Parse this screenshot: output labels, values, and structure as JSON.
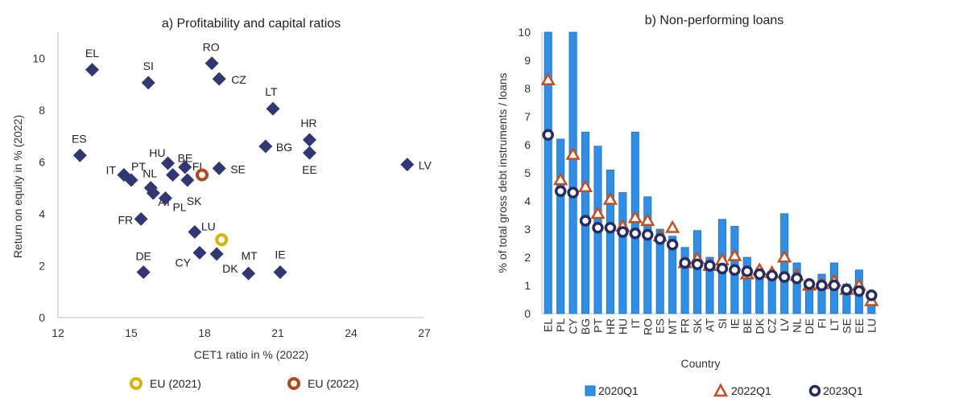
{
  "colors": {
    "diamond": "#303772",
    "eu2021": "#d9b200",
    "eu2022": "#b5461c",
    "bar": "#2e8fe8",
    "bar_edge": "#1c6fc4",
    "triangle": "#c2501f",
    "circle": "#262c5e"
  },
  "chart_data": [
    {
      "type": "scatter",
      "title": "a) Profitability and capital ratios",
      "xlabel": "CET1 ratio in % (2022)",
      "ylabel": "Return on equity in % (2022)",
      "xlim": [
        12,
        27
      ],
      "ylim": [
        0,
        11
      ],
      "xticks": [
        12,
        15,
        18,
        21,
        24,
        27
      ],
      "yticks": [
        0,
        2,
        4,
        6,
        8,
        10
      ],
      "grid": false,
      "legend_position": "bottom",
      "points": [
        {
          "label": "EL",
          "x": 13.4,
          "y": 9.55
        },
        {
          "label": "SI",
          "x": 15.7,
          "y": 9.05
        },
        {
          "label": "RO",
          "x": 18.3,
          "y": 9.8
        },
        {
          "label": "CZ",
          "x": 18.6,
          "y": 9.2
        },
        {
          "label": "LT",
          "x": 20.8,
          "y": 8.05
        },
        {
          "label": "ES",
          "x": 12.9,
          "y": 6.25
        },
        {
          "label": "BG",
          "x": 20.5,
          "y": 6.6
        },
        {
          "label": "HR",
          "x": 22.3,
          "y": 6.85
        },
        {
          "label": "EE",
          "x": 22.3,
          "y": 6.35
        },
        {
          "label": "LV",
          "x": 26.3,
          "y": 5.9
        },
        {
          "label": "IT",
          "x": 14.7,
          "y": 5.5
        },
        {
          "label": "PT",
          "x": 15.0,
          "y": 5.3
        },
        {
          "label": "HU",
          "x": 16.5,
          "y": 5.95
        },
        {
          "label": "BE",
          "x": 16.7,
          "y": 5.5
        },
        {
          "label": "FI",
          "x": 17.2,
          "y": 5.8
        },
        {
          "label": "SK",
          "x": 17.3,
          "y": 5.3
        },
        {
          "label": "SE",
          "x": 18.6,
          "y": 5.75
        },
        {
          "label": "NL",
          "x": 15.8,
          "y": 5.0
        },
        {
          "label": "AT",
          "x": 15.9,
          "y": 4.8
        },
        {
          "label": "PL",
          "x": 16.4,
          "y": 4.6
        },
        {
          "label": "FR",
          "x": 15.4,
          "y": 3.8
        },
        {
          "label": "LU",
          "x": 17.6,
          "y": 3.3
        },
        {
          "label": "CY",
          "x": 17.8,
          "y": 2.5
        },
        {
          "label": "DK",
          "x": 18.5,
          "y": 2.45
        },
        {
          "label": "DE",
          "x": 15.5,
          "y": 1.75
        },
        {
          "label": "MT",
          "x": 19.8,
          "y": 1.7
        },
        {
          "label": "IE",
          "x": 21.1,
          "y": 1.75
        }
      ],
      "eu_points": [
        {
          "name": "EU (2021)",
          "x": 18.7,
          "y": 3.0
        },
        {
          "name": "EU (2022)",
          "x": 17.9,
          "y": 5.5
        }
      ]
    },
    {
      "type": "bar",
      "title": "b) Non-performing loans",
      "xlabel": "Country",
      "ylabel": "% of total gross debt instruments / loans",
      "ylim": [
        0,
        10
      ],
      "yticks": [
        0,
        1,
        2,
        3,
        4,
        5,
        6,
        7,
        8,
        9,
        10
      ],
      "grid": false,
      "legend_position": "bottom",
      "categories": [
        "EL",
        "PL",
        "CY",
        "BG",
        "PT",
        "HR",
        "HU",
        "IT",
        "RO",
        "ES",
        "MT",
        "FR",
        "SK",
        "AT",
        "SI",
        "IE",
        "BE",
        "DK",
        "CZ",
        "LV",
        "NL",
        "DE",
        "FI",
        "LT",
        "SE",
        "EE",
        "LU"
      ],
      "series": [
        {
          "name": "2020Q1",
          "kind": "bar",
          "values": [
            10.0,
            6.2,
            10.0,
            6.45,
            5.95,
            5.1,
            4.3,
            6.45,
            4.15,
            3.0,
            2.75,
            2.35,
            2.95,
            2.0,
            3.35,
            3.1,
            2.0,
            1.6,
            1.45,
            3.55,
            1.8,
            1.1,
            1.4,
            1.8,
            1.05,
            1.55,
            0.55
          ]
        },
        {
          "name": "2022Q1",
          "kind": "triangle",
          "values": [
            8.3,
            4.75,
            5.65,
            4.5,
            3.55,
            4.05,
            3.1,
            3.4,
            3.3,
            2.75,
            3.05,
            1.8,
            1.95,
            1.7,
            1.9,
            2.05,
            1.4,
            1.55,
            1.45,
            2.0,
            1.35,
            1.0,
            1.05,
            1.15,
            0.85,
            1.0,
            0.45
          ]
        },
        {
          "name": "2023Q1",
          "kind": "circle",
          "values": [
            6.35,
            4.35,
            4.3,
            3.3,
            3.05,
            3.05,
            2.9,
            2.85,
            2.8,
            2.65,
            2.45,
            1.8,
            1.75,
            1.7,
            1.6,
            1.55,
            1.5,
            1.4,
            1.35,
            1.3,
            1.25,
            1.05,
            1.0,
            1.0,
            0.85,
            0.8,
            0.65
          ]
        }
      ]
    }
  ]
}
